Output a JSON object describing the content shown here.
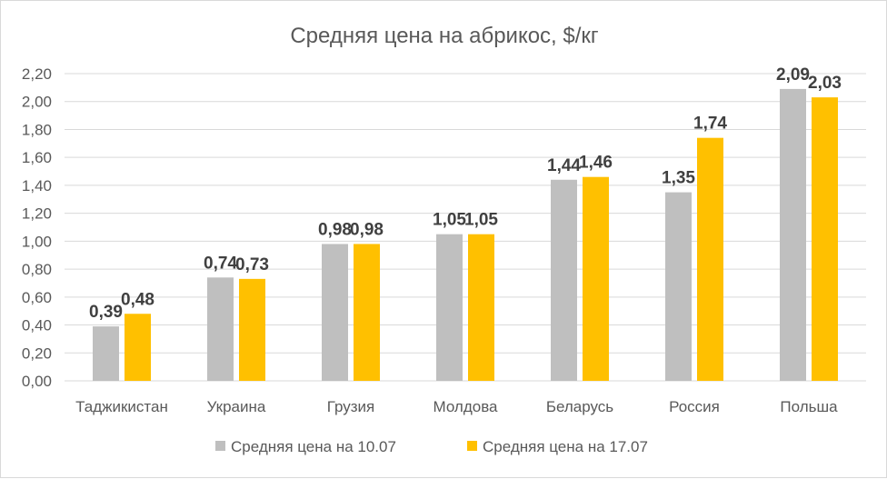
{
  "chart_data": {
    "type": "bar",
    "title": "Средняя цена на абрикос, $/кг",
    "categories": [
      "Таджикистан",
      "Украина",
      "Грузия",
      "Молдова",
      "Беларусь",
      "Россия",
      "Польша"
    ],
    "series": [
      {
        "name": "Средняя цена на 10.07",
        "color": "#bfbfbf",
        "values": [
          0.39,
          0.74,
          0.98,
          1.05,
          1.44,
          1.35,
          2.09
        ],
        "labels": [
          "0,39",
          "0,74",
          "0,98",
          "1,05",
          "1,44",
          "1,35",
          "2,09"
        ]
      },
      {
        "name": "Средняя цена на 17.07",
        "color": "#ffc000",
        "values": [
          0.48,
          0.73,
          0.98,
          1.05,
          1.46,
          1.74,
          2.03
        ],
        "labels": [
          "0,48",
          "0,73",
          "0,98",
          "1,05",
          "1,46",
          "1,74",
          "2,03"
        ]
      }
    ],
    "ylim": [
      0,
      2.2
    ],
    "yticks": [
      "0,00",
      "0,20",
      "0,40",
      "0,60",
      "0,80",
      "1,00",
      "1,20",
      "1,40",
      "1,60",
      "1,80",
      "2,00",
      "2,20"
    ],
    "grid": true,
    "legend": "bottom",
    "xlabel": "",
    "ylabel": ""
  }
}
